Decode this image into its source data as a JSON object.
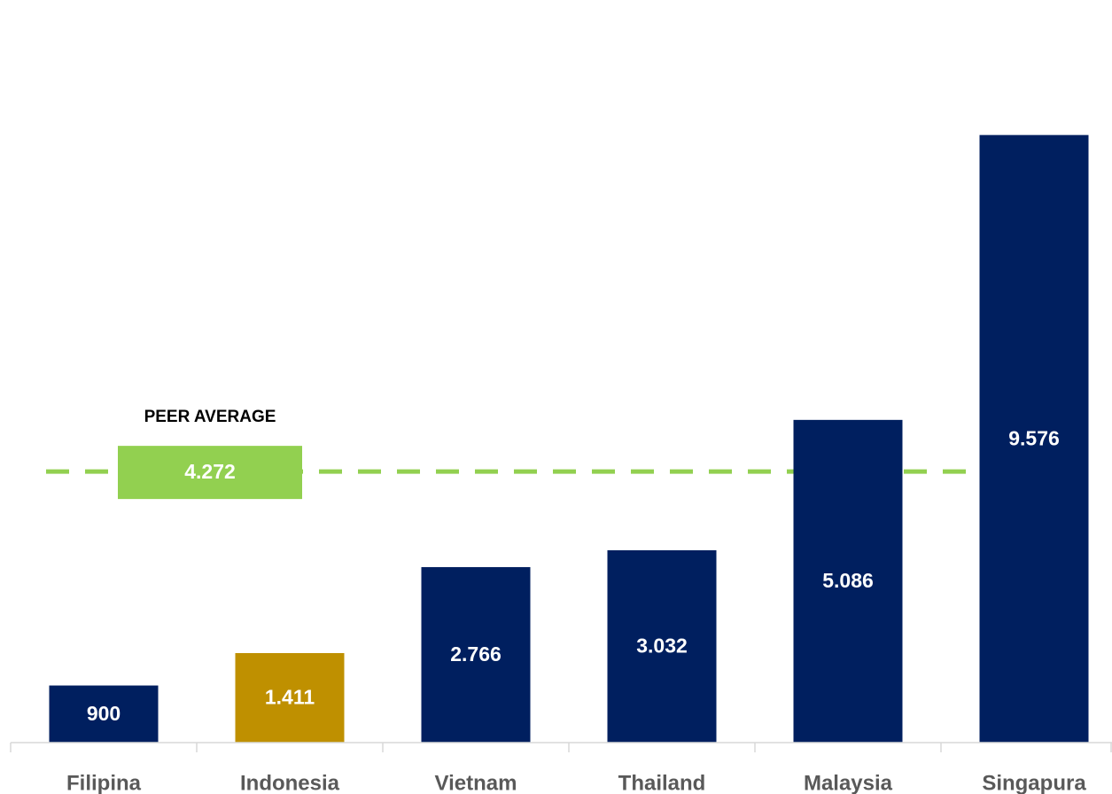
{
  "chart_data": {
    "type": "bar",
    "categories": [
      "Filipina",
      "Indonesia",
      "Vietnam",
      "Thailand",
      "Malaysia",
      "Singapura"
    ],
    "values": [
      900,
      1411,
      2766,
      3032,
      5086,
      9576
    ],
    "value_labels": [
      "900",
      "1.411",
      "2.766",
      "3.032",
      "5.086",
      "9.576"
    ],
    "colors": [
      "#001f5f",
      "#bf9000",
      "#001f5f",
      "#001f5f",
      "#001f5f",
      "#001f5f"
    ],
    "ylim": [
      0,
      10000
    ],
    "average": {
      "label": "PEER AVERAGE",
      "value": 4272,
      "value_label": "4.272",
      "color": "#92d050"
    }
  }
}
